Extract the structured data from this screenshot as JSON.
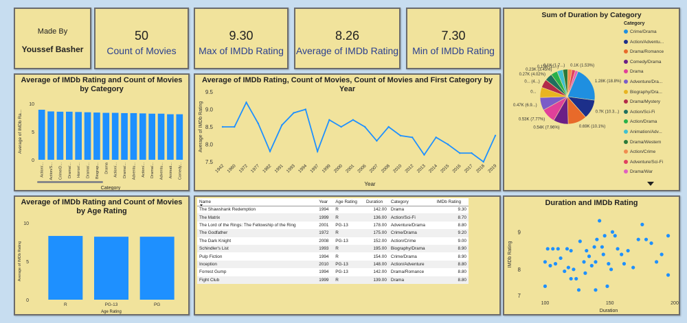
{
  "made_by": {
    "label": "Made By",
    "name": "Youssef Basher"
  },
  "kpis": [
    {
      "value": "50",
      "label": "Count of Movies"
    },
    {
      "value": "9.30",
      "label": "Max of IMDb Rating"
    },
    {
      "value": "8.26",
      "label": "Average of IMDb Rating"
    },
    {
      "value": "7.30",
      "label": "Min of IMDb Rating"
    }
  ],
  "colors": {
    "accent": "#1e90ff",
    "tile_bg": "#f1e39c",
    "page_bg": "#c7ddf0",
    "kpi_label": "#2a3f8f"
  },
  "pie": {
    "title": "Sum of Duration by Category",
    "legend_title": "Category",
    "slices": [
      {
        "name": "Crime/Drama",
        "color": "#1f8fe0",
        "label": "1.28K (18.8%)"
      },
      {
        "name": "Action/Adventu...",
        "color": "#1c2f8a",
        "label": "0.7K (10.3...)"
      },
      {
        "name": "Drama/Romance",
        "color": "#e86a2a",
        "label": "0.69K (10.1%)"
      },
      {
        "name": "Comedy/Drama",
        "color": "#6b1f86",
        "label": "0.54K (7.96%)"
      },
      {
        "name": "Drama",
        "color": "#e0409a",
        "label": "0.53K (7.77%)"
      },
      {
        "name": "Adventure/Dra...",
        "color": "#7a5cc8",
        "label": "0.47K (6.9...)"
      },
      {
        "name": "Biography/Dra...",
        "color": "#e8b420",
        "label": "0..."
      },
      {
        "name": "Drama/Mystery",
        "color": "#b22a4a",
        "label": "0... (4...)"
      },
      {
        "name": "Action/Sci-Fi",
        "color": "#1f6f5f",
        "label": "0.27K (4.02%)"
      },
      {
        "name": "Action/Drama",
        "color": "#28b04a",
        "label": "0.23K (3.45%)"
      },
      {
        "name": "Animation/Adv...",
        "color": "#40c0d0",
        "label": "0.15K (2....)"
      },
      {
        "name": "Drama/Western",
        "color": "#2a7a3a",
        "label": "0.1K (1.7...)"
      },
      {
        "name": "Action/Crime",
        "color": "#f08c50",
        "label": "0.1K (1.53%)"
      },
      {
        "name": "Adventure/Sci-Fi",
        "color": "#e04060",
        "label": ""
      },
      {
        "name": "Drama/War",
        "color": "#e060c0",
        "label": ""
      }
    ]
  },
  "chart_data": [
    {
      "type": "bar",
      "title": "Average of IMDb Rating and Count of Movies by Category",
      "xlabel": "Category",
      "ylabel": "Average of IMDb Ra...",
      "ylim": [
        0,
        10
      ],
      "yticks": [
        "0",
        "5",
        "10"
      ],
      "categories": [
        "Action/...",
        "Action/S...",
        "Crime/D...",
        "Drama/...",
        "Horror/...",
        "Drama/...",
        "Biograp...",
        "Drama",
        "Action/...",
        "Drama/...",
        "Adventu...",
        "Action/...",
        "Drama/...",
        "Adventu...",
        "Animati...",
        "Comedy..."
      ],
      "values": [
        8.9,
        8.6,
        8.55,
        8.55,
        8.5,
        8.45,
        8.4,
        8.35,
        8.35,
        8.3,
        8.3,
        8.25,
        8.2,
        8.2,
        8.1,
        8.1
      ]
    },
    {
      "type": "line",
      "title": "Average of IMDb Rating, Count of Movies, Count of Movies and First Category by Year",
      "xlabel": "Year",
      "ylabel": "Average of IMDb Rating",
      "ylim": [
        7.5,
        9.5
      ],
      "yticks": [
        "7.5",
        "8.0",
        "8.5",
        "9.0",
        "9.5"
      ],
      "x": [
        "1942",
        "1960",
        "1972",
        "1977",
        "1982",
        "1991",
        "1993",
        "1994",
        "1997",
        "1999",
        "2000",
        "2001",
        "2006",
        "2007",
        "2008",
        "2010",
        "2012",
        "2013",
        "2014",
        "2015",
        "2016",
        "2017",
        "2018",
        "2019"
      ],
      "values": [
        8.5,
        8.5,
        9.2,
        8.6,
        7.8,
        8.55,
        8.9,
        9.0,
        7.8,
        8.7,
        8.5,
        8.7,
        8.5,
        8.1,
        8.5,
        8.25,
        8.2,
        7.7,
        8.2,
        8.0,
        7.75,
        7.75,
        7.5,
        8.25
      ]
    },
    {
      "type": "bar",
      "title": "Average of IMDb Rating and Count of Movies by Age Rating",
      "xlabel": "Age Rating",
      "ylabel": "Average of IMDb Rating",
      "ylim": [
        0,
        10
      ],
      "yticks": [
        "0",
        "5",
        "10"
      ],
      "categories": [
        "R",
        "PG-13",
        "PG"
      ],
      "values": [
        8.3,
        8.2,
        8.2
      ]
    },
    {
      "type": "scatter",
      "title": "Duration and IMDb Rating",
      "xlabel": "Duration",
      "ylabel": "IMDb Rating",
      "xlim": [
        95,
        200
      ],
      "ylim": [
        7.3,
        9.5
      ],
      "xticks": [
        "100",
        "150",
        "200"
      ],
      "yticks": [
        "7",
        "8",
        "9"
      ],
      "points": [
        [
          102,
          8.55
        ],
        [
          106,
          8.55
        ],
        [
          110,
          8.55
        ],
        [
          117,
          8.55
        ],
        [
          100,
          8.2
        ],
        [
          104,
          8.1
        ],
        [
          108,
          8.15
        ],
        [
          112,
          8.3
        ],
        [
          115,
          7.95
        ],
        [
          118,
          8.05
        ],
        [
          120,
          8.5
        ],
        [
          122,
          8.0
        ],
        [
          124,
          7.75
        ],
        [
          127,
          8.75
        ],
        [
          130,
          8.2
        ],
        [
          131,
          7.9
        ],
        [
          132,
          8.5
        ],
        [
          134,
          8.35
        ],
        [
          136,
          8.1
        ],
        [
          138,
          8.6
        ],
        [
          139,
          8.2
        ],
        [
          140,
          8.8
        ],
        [
          142,
          9.3
        ],
        [
          144,
          8.6
        ],
        [
          145,
          8.4
        ],
        [
          146,
          8.9
        ],
        [
          148,
          7.55
        ],
        [
          149,
          8.15
        ],
        [
          151,
          8.0
        ],
        [
          152,
          9.0
        ],
        [
          154,
          8.9
        ],
        [
          156,
          8.55
        ],
        [
          159,
          8.4
        ],
        [
          161,
          8.15
        ],
        [
          164,
          8.5
        ],
        [
          168,
          8.05
        ],
        [
          172,
          8.8
        ],
        [
          175,
          9.2
        ],
        [
          178,
          8.8
        ],
        [
          182,
          8.7
        ],
        [
          186,
          8.2
        ],
        [
          190,
          8.4
        ],
        [
          195,
          8.9
        ],
        [
          195,
          7.85
        ],
        [
          100,
          7.55
        ],
        [
          126,
          7.45
        ],
        [
          120,
          7.75
        ],
        [
          139,
          7.45
        ]
      ]
    }
  ],
  "table": {
    "columns": [
      "Name",
      "Year",
      "Age Rating",
      "Duration",
      "Category",
      "IMDb Rating"
    ],
    "rows": [
      [
        "The Shawshank Redemption",
        "1994",
        "R",
        "142.00",
        "Drama",
        "9.30"
      ],
      [
        "The Matrix",
        "1999",
        "R",
        "136.00",
        "Action/Sci-Fi",
        "8.70"
      ],
      [
        "The Lord of the Rings: The Fellowship of the Ring",
        "2001",
        "PG-13",
        "178.00",
        "Adventure/Drama",
        "8.80"
      ],
      [
        "The Godfather",
        "1972",
        "R",
        "175.00",
        "Crime/Drama",
        "9.20"
      ],
      [
        "The Dark Knight",
        "2008",
        "PG-13",
        "152.00",
        "Action/Crime",
        "9.00"
      ],
      [
        "Schindler's List",
        "1993",
        "R",
        "195.00",
        "Biography/Drama",
        "8.90"
      ],
      [
        "Pulp Fiction",
        "1994",
        "R",
        "154.00",
        "Crime/Drama",
        "8.90"
      ],
      [
        "Inception",
        "2010",
        "PG-13",
        "148.00",
        "Action/Adventure",
        "8.80"
      ],
      [
        "Forrest Gump",
        "1994",
        "PG-13",
        "142.00",
        "Drama/Romance",
        "8.80"
      ],
      [
        "Fight Club",
        "1999",
        "R",
        "139.00",
        "Drama",
        "8.80"
      ]
    ]
  }
}
